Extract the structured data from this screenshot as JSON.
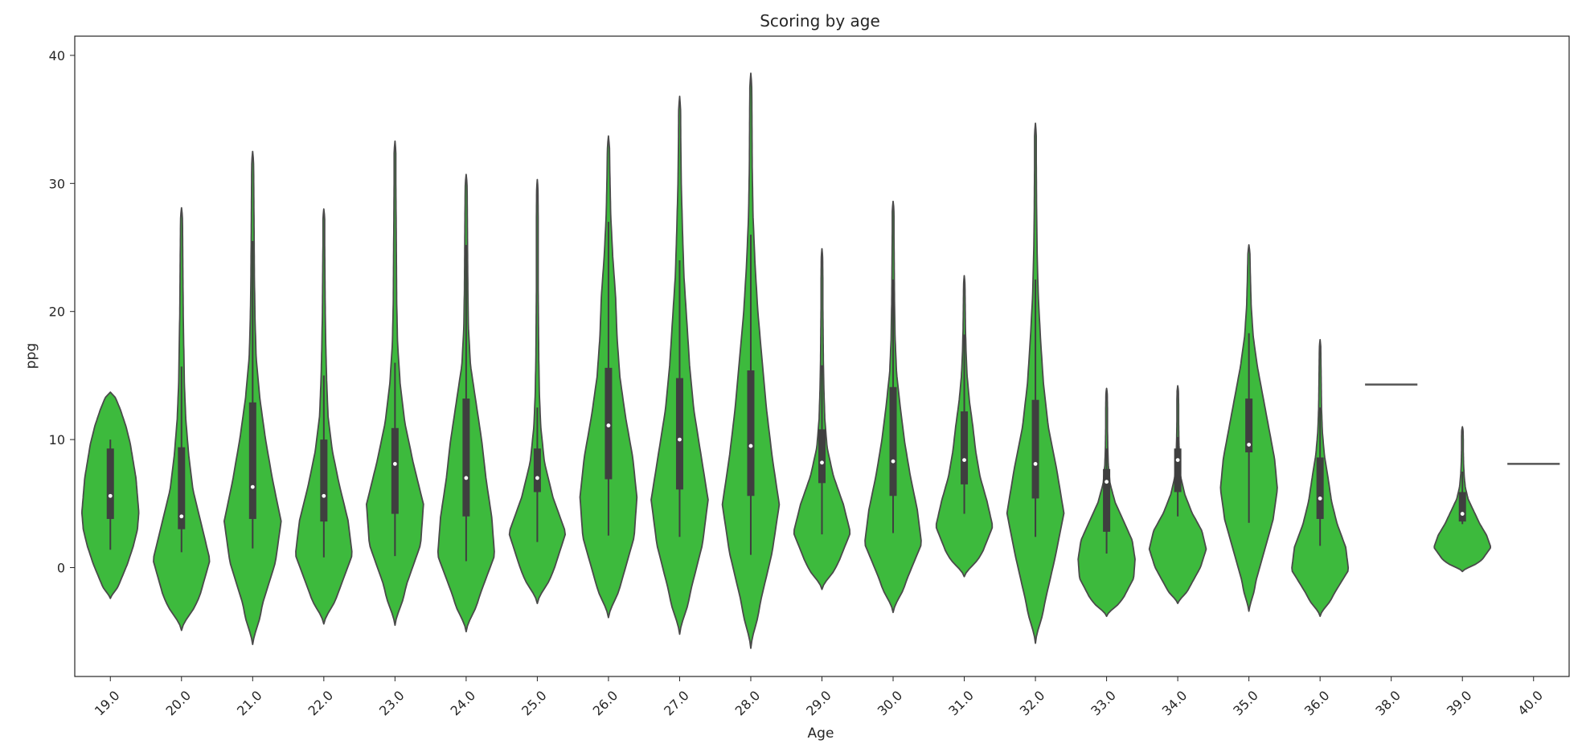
{
  "chart_data": {
    "type": "violin",
    "title": "Scoring by age",
    "xlabel": "Age",
    "ylabel": "ppg",
    "ylim": [
      -8.5,
      41.5
    ],
    "yticks": [
      0,
      10,
      20,
      30,
      40
    ],
    "grid": false,
    "legend": "none",
    "color": "#3dba3d",
    "categories": [
      "19.0",
      "20.0",
      "21.0",
      "22.0",
      "23.0",
      "24.0",
      "25.0",
      "26.0",
      "27.0",
      "28.0",
      "29.0",
      "30.0",
      "31.0",
      "32.0",
      "33.0",
      "34.0",
      "35.0",
      "36.0",
      "38.0",
      "39.0",
      "40.0"
    ],
    "series": [
      {
        "min": -2.4,
        "q1": 3.8,
        "median": 5.6,
        "q3": 9.3,
        "max": 13.7,
        "whisker_low": 1.4,
        "whisker_high": 10.0,
        "profile": [
          0.1,
          0.35,
          0.6,
          0.8,
          0.95,
          1.0,
          0.95,
          0.9,
          0.8,
          0.7,
          0.55,
          0.35,
          0.1
        ]
      },
      {
        "min": -4.9,
        "q1": 3.0,
        "median": 4.0,
        "q3": 9.4,
        "max": 28.1,
        "whisker_low": 1.2,
        "whisker_high": 15.7,
        "profile": [
          0.1,
          0.65,
          1.0,
          0.7,
          0.4,
          0.25,
          0.15,
          0.1,
          0.08,
          0.06,
          0.05,
          0.04,
          0.03
        ]
      },
      {
        "min": -6.0,
        "q1": 3.8,
        "median": 6.3,
        "q3": 12.9,
        "max": 32.5,
        "whisker_low": 1.5,
        "whisker_high": 25.5,
        "profile": [
          0.08,
          0.35,
          0.8,
          1.0,
          0.7,
          0.45,
          0.25,
          0.12,
          0.08,
          0.06,
          0.05,
          0.04,
          0.03
        ]
      },
      {
        "min": -4.4,
        "q1": 3.6,
        "median": 5.6,
        "q3": 10.0,
        "max": 28.0,
        "whisker_low": 0.8,
        "whisker_high": 15.0,
        "profile": [
          0.1,
          0.55,
          1.0,
          0.85,
          0.55,
          0.3,
          0.15,
          0.1,
          0.07,
          0.05,
          0.04,
          0.03,
          0.03
        ]
      },
      {
        "min": -4.5,
        "q1": 4.2,
        "median": 8.1,
        "q3": 10.9,
        "max": 33.3,
        "whisker_low": 0.9,
        "whisker_high": 16.0,
        "profile": [
          0.08,
          0.4,
          0.9,
          1.0,
          0.65,
          0.35,
          0.18,
          0.09,
          0.06,
          0.05,
          0.04,
          0.03,
          0.03
        ]
      },
      {
        "min": -5.0,
        "q1": 4.0,
        "median": 7.0,
        "q3": 13.2,
        "max": 30.7,
        "whisker_low": 0.5,
        "whisker_high": 25.2,
        "profile": [
          0.08,
          0.5,
          1.0,
          0.9,
          0.7,
          0.55,
          0.35,
          0.15,
          0.08,
          0.06,
          0.05,
          0.04,
          0.03
        ]
      },
      {
        "min": -2.8,
        "q1": 5.9,
        "median": 7.0,
        "q3": 9.3,
        "max": 30.3,
        "whisker_low": 2.0,
        "whisker_high": 12.5,
        "profile": [
          0.1,
          0.6,
          1.0,
          0.55,
          0.25,
          0.12,
          0.07,
          0.05,
          0.04,
          0.03,
          0.03,
          0.03,
          0.02
        ]
      },
      {
        "min": -3.9,
        "q1": 6.9,
        "median": 11.1,
        "q3": 15.6,
        "max": 33.7,
        "whisker_low": 2.5,
        "whisker_high": 27.0,
        "profile": [
          0.1,
          0.5,
          0.9,
          1.0,
          0.85,
          0.6,
          0.4,
          0.3,
          0.25,
          0.15,
          0.08,
          0.05,
          0.03
        ]
      },
      {
        "min": -5.2,
        "q1": 6.1,
        "median": 10.0,
        "q3": 14.8,
        "max": 36.8,
        "whisker_low": 2.4,
        "whisker_high": 24.0,
        "profile": [
          0.08,
          0.4,
          0.8,
          1.0,
          0.75,
          0.5,
          0.35,
          0.25,
          0.15,
          0.1,
          0.06,
          0.04,
          0.03
        ]
      },
      {
        "min": -6.3,
        "q1": 5.6,
        "median": 9.5,
        "q3": 15.4,
        "max": 38.6,
        "whisker_low": 1.0,
        "whisker_high": 26.0,
        "profile": [
          0.06,
          0.35,
          0.75,
          1.0,
          0.75,
          0.55,
          0.4,
          0.25,
          0.15,
          0.08,
          0.05,
          0.04,
          0.03
        ]
      },
      {
        "min": -1.7,
        "q1": 6.6,
        "median": 8.2,
        "q3": 10.8,
        "max": 24.9,
        "whisker_low": 2.6,
        "whisker_high": 15.8,
        "profile": [
          0.1,
          0.6,
          1.0,
          0.75,
          0.4,
          0.18,
          0.1,
          0.07,
          0.05,
          0.04,
          0.03,
          0.03,
          0.02
        ]
      },
      {
        "min": -3.5,
        "q1": 5.6,
        "median": 8.3,
        "q3": 14.1,
        "max": 28.6,
        "whisker_low": 2.7,
        "whisker_high": 22.5,
        "profile": [
          0.08,
          0.5,
          1.0,
          0.85,
          0.6,
          0.4,
          0.25,
          0.12,
          0.07,
          0.05,
          0.04,
          0.03,
          0.03
        ]
      },
      {
        "min": -0.7,
        "q1": 6.5,
        "median": 8.4,
        "q3": 12.2,
        "max": 22.8,
        "whisker_low": 4.2,
        "whisker_high": 18.2,
        "profile": [
          0.12,
          0.65,
          1.0,
          0.8,
          0.55,
          0.4,
          0.3,
          0.18,
          0.1,
          0.06,
          0.04,
          0.03,
          0.02
        ]
      },
      {
        "min": -5.9,
        "q1": 5.4,
        "median": 8.1,
        "q3": 13.1,
        "max": 34.7,
        "whisker_low": 2.4,
        "whisker_high": 22.5,
        "profile": [
          0.06,
          0.35,
          0.7,
          1.0,
          0.75,
          0.45,
          0.28,
          0.18,
          0.1,
          0.06,
          0.04,
          0.03,
          0.03
        ]
      },
      {
        "min": -3.8,
        "q1": 2.8,
        "median": 6.7,
        "q3": 7.7,
        "max": 14.0,
        "whisker_low": 1.1,
        "whisker_high": 9.3,
        "profile": [
          0.1,
          0.6,
          0.95,
          1.0,
          0.9,
          0.6,
          0.3,
          0.12,
          0.06,
          0.04,
          0.03,
          0.03,
          0.02
        ]
      },
      {
        "min": -2.8,
        "q1": 5.9,
        "median": 8.4,
        "q3": 9.3,
        "max": 14.2,
        "whisker_low": 4.0,
        "whisker_high": 10.2,
        "profile": [
          0.1,
          0.45,
          0.8,
          1.0,
          0.85,
          0.5,
          0.25,
          0.1,
          0.06,
          0.04,
          0.03,
          0.03,
          0.02
        ]
      },
      {
        "min": -3.4,
        "q1": 9.0,
        "median": 9.6,
        "q3": 13.2,
        "max": 25.2,
        "whisker_low": 3.5,
        "whisker_high": 18.3,
        "profile": [
          0.06,
          0.25,
          0.55,
          0.85,
          1.0,
          0.9,
          0.7,
          0.5,
          0.3,
          0.15,
          0.08,
          0.05,
          0.03
        ]
      },
      {
        "min": -3.8,
        "q1": 3.8,
        "median": 5.4,
        "q3": 8.6,
        "max": 17.8,
        "whisker_low": 1.7,
        "whisker_high": 12.5,
        "profile": [
          0.08,
          0.5,
          1.0,
          0.9,
          0.6,
          0.4,
          0.28,
          0.15,
          0.08,
          0.05,
          0.04,
          0.03,
          0.02
        ]
      },
      {
        "single_value": 14.3
      },
      {
        "min": -0.3,
        "q1": 3.6,
        "median": 4.2,
        "q3": 5.9,
        "max": 11.0,
        "whisker_low": 3.4,
        "whisker_high": 7.5,
        "profile": [
          0.15,
          0.7,
          1.0,
          0.85,
          0.6,
          0.4,
          0.2,
          0.1,
          0.06,
          0.04,
          0.03,
          0.03,
          0.02
        ]
      },
      {
        "single_value": 8.1
      }
    ]
  }
}
